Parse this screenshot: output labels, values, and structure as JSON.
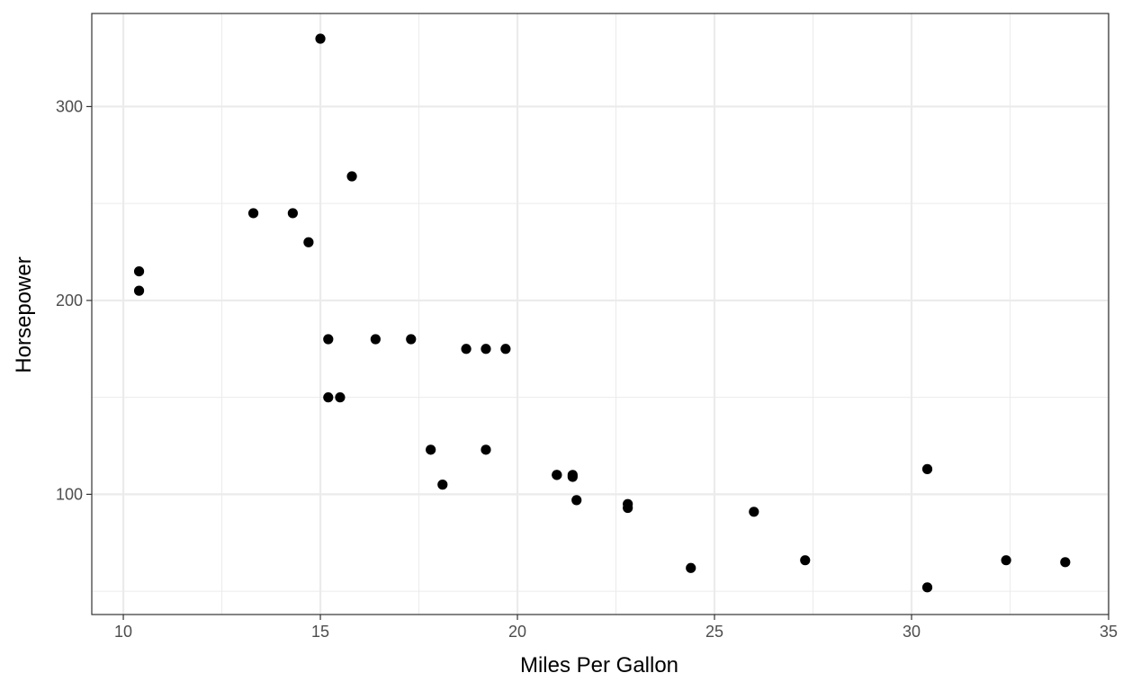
{
  "chart_data": {
    "type": "scatter",
    "title": "",
    "xlabel": "Miles Per Gallon",
    "ylabel": "Horsepower",
    "xlim": [
      9.2,
      35.0
    ],
    "ylim": [
      38.0,
      348.0
    ],
    "x_ticks": [
      10,
      15,
      20,
      25,
      30,
      35
    ],
    "x_ticks_minor": [
      12.5,
      17.5,
      22.5,
      27.5,
      32.5
    ],
    "y_ticks": [
      100,
      200,
      300
    ],
    "y_ticks_minor": [
      50,
      150,
      250
    ],
    "grid": true,
    "legend": "none",
    "colors": {
      "points": "#000000",
      "grid": "#ebebeb",
      "panel_border": "#333333",
      "tick_text": "#4d4d4d"
    },
    "points": [
      {
        "x": 21.0,
        "y": 110
      },
      {
        "x": 21.0,
        "y": 110
      },
      {
        "x": 22.8,
        "y": 93
      },
      {
        "x": 21.4,
        "y": 110
      },
      {
        "x": 18.7,
        "y": 175
      },
      {
        "x": 18.1,
        "y": 105
      },
      {
        "x": 14.3,
        "y": 245
      },
      {
        "x": 24.4,
        "y": 62
      },
      {
        "x": 22.8,
        "y": 95
      },
      {
        "x": 19.2,
        "y": 123
      },
      {
        "x": 17.8,
        "y": 123
      },
      {
        "x": 16.4,
        "y": 180
      },
      {
        "x": 17.3,
        "y": 180
      },
      {
        "x": 15.2,
        "y": 180
      },
      {
        "x": 10.4,
        "y": 205
      },
      {
        "x": 10.4,
        "y": 215
      },
      {
        "x": 14.7,
        "y": 230
      },
      {
        "x": 32.4,
        "y": 66
      },
      {
        "x": 30.4,
        "y": 52
      },
      {
        "x": 33.9,
        "y": 65
      },
      {
        "x": 21.5,
        "y": 97
      },
      {
        "x": 15.5,
        "y": 150
      },
      {
        "x": 15.2,
        "y": 150
      },
      {
        "x": 13.3,
        "y": 245
      },
      {
        "x": 19.2,
        "y": 175
      },
      {
        "x": 27.3,
        "y": 66
      },
      {
        "x": 26.0,
        "y": 91
      },
      {
        "x": 30.4,
        "y": 113
      },
      {
        "x": 15.8,
        "y": 264
      },
      {
        "x": 19.7,
        "y": 175
      },
      {
        "x": 15.0,
        "y": 335
      },
      {
        "x": 21.4,
        "y": 109
      }
    ]
  }
}
